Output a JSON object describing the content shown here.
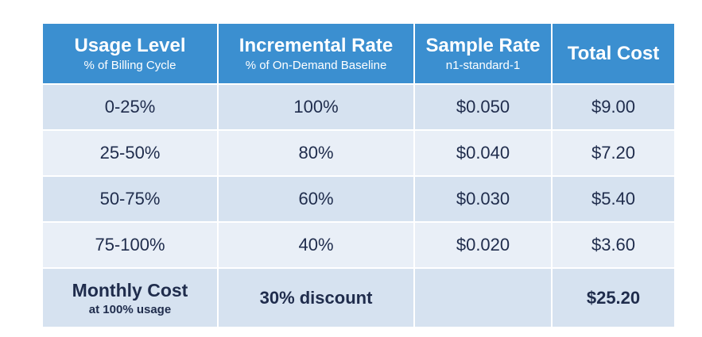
{
  "table": {
    "header": [
      {
        "title": "Usage Level",
        "subtitle": "% of Billing Cycle"
      },
      {
        "title": "Incremental Rate",
        "subtitle": "% of On-Demand Baseline"
      },
      {
        "title": "Sample Rate",
        "subtitle": "n1-standard-1"
      },
      {
        "title": "Total Cost"
      }
    ],
    "rows": [
      [
        "0-25%",
        "100%",
        "$0.050",
        "$9.00"
      ],
      [
        "25-50%",
        "80%",
        "$0.040",
        "$7.20"
      ],
      [
        "50-75%",
        "60%",
        "$0.030",
        "$5.40"
      ],
      [
        "75-100%",
        "40%",
        "$0.020",
        "$3.60"
      ]
    ],
    "footer": {
      "label": "Monthly Cost",
      "sublabel": "at 100% usage",
      "discount": "30% discount",
      "total": "$25.20"
    }
  }
}
